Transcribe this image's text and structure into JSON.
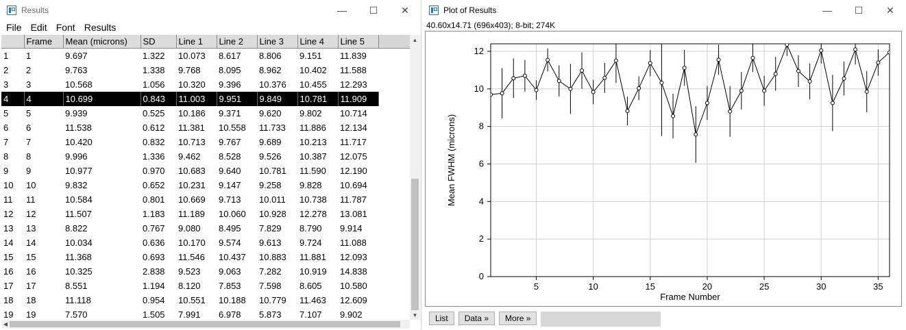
{
  "results_window": {
    "title": "Results",
    "menu": [
      "File",
      "Edit",
      "Font",
      "Results"
    ],
    "columns": [
      "",
      "Frame",
      "Mean (microns)",
      "SD",
      "Line 1",
      "Line 2",
      "Line 3",
      "Line 4",
      "Line 5"
    ],
    "selected_row": 3,
    "rows": [
      [
        "1",
        "1",
        "9.697",
        "1.322",
        "10.073",
        "8.617",
        "8.806",
        "9.151",
        "11.839"
      ],
      [
        "2",
        "2",
        "9.763",
        "1.338",
        "9.768",
        "8.095",
        "8.962",
        "10.402",
        "11.588"
      ],
      [
        "3",
        "3",
        "10.568",
        "1.056",
        "10.320",
        "9.396",
        "10.376",
        "10.455",
        "12.293"
      ],
      [
        "4",
        "4",
        "10.699",
        "0.843",
        "11.003",
        "9.951",
        "9.849",
        "10.781",
        "11.909"
      ],
      [
        "5",
        "5",
        "9.939",
        "0.525",
        "10.186",
        "9.371",
        "9.620",
        "9.802",
        "10.714"
      ],
      [
        "6",
        "6",
        "11.538",
        "0.612",
        "11.381",
        "10.558",
        "11.733",
        "11.886",
        "12.134"
      ],
      [
        "7",
        "7",
        "10.420",
        "0.832",
        "10.713",
        "9.767",
        "9.689",
        "10.213",
        "11.717"
      ],
      [
        "8",
        "8",
        "9.996",
        "1.336",
        "9.462",
        "8.528",
        "9.526",
        "10.387",
        "12.075"
      ],
      [
        "9",
        "9",
        "10.977",
        "0.970",
        "10.683",
        "9.640",
        "10.781",
        "11.590",
        "12.190"
      ],
      [
        "10",
        "10",
        "9.832",
        "0.652",
        "10.231",
        "9.147",
        "9.258",
        "9.828",
        "10.694"
      ],
      [
        "11",
        "11",
        "10.584",
        "0.801",
        "10.669",
        "9.713",
        "10.011",
        "10.738",
        "11.787"
      ],
      [
        "12",
        "12",
        "11.507",
        "1.183",
        "11.189",
        "10.060",
        "10.928",
        "12.278",
        "13.081"
      ],
      [
        "13",
        "13",
        "8.822",
        "0.767",
        "9.080",
        "8.495",
        "7.829",
        "8.790",
        "9.914"
      ],
      [
        "14",
        "14",
        "10.034",
        "0.636",
        "10.170",
        "9.574",
        "9.613",
        "9.724",
        "11.088"
      ],
      [
        "15",
        "15",
        "11.368",
        "0.693",
        "11.546",
        "10.437",
        "10.883",
        "11.881",
        "12.093"
      ],
      [
        "16",
        "16",
        "10.325",
        "2.838",
        "9.523",
        "9.063",
        "7.282",
        "10.919",
        "14.838"
      ],
      [
        "17",
        "17",
        "8.551",
        "1.194",
        "8.120",
        "7.853",
        "7.598",
        "8.605",
        "10.580"
      ],
      [
        "18",
        "18",
        "11.118",
        "0.954",
        "10.551",
        "10.188",
        "10.779",
        "11.463",
        "12.609"
      ],
      [
        "19",
        "19",
        "7.570",
        "1.505",
        "7.991",
        "6.978",
        "5.873",
        "7.107",
        "9.902"
      ]
    ]
  },
  "plot_window": {
    "title": "Plot of Results",
    "info": "40.60x14.71  (696x403); 8-bit; 274K",
    "buttons": [
      "List",
      "Data »",
      "More »"
    ]
  },
  "chart_data": {
    "type": "line",
    "title": "",
    "xlabel": "Frame Number",
    "ylabel": "Mean FWHM (microns)",
    "xlim": [
      1,
      36
    ],
    "ylim": [
      0,
      12.4
    ],
    "xticks": [
      5,
      10,
      15,
      20,
      25,
      30,
      35
    ],
    "yticks": [
      0,
      2,
      4,
      6,
      8,
      10,
      12
    ],
    "grid": true,
    "series": [
      {
        "name": "Mean (microns)",
        "x": [
          1,
          2,
          3,
          4,
          5,
          6,
          7,
          8,
          9,
          10,
          11,
          12,
          13,
          14,
          15,
          16,
          17,
          18,
          19,
          20,
          21,
          22,
          23,
          24,
          25,
          26,
          27,
          28,
          29,
          30,
          31,
          32,
          33,
          34,
          35,
          36
        ],
        "values": [
          9.697,
          9.763,
          10.568,
          10.699,
          9.939,
          11.538,
          10.42,
          9.996,
          10.977,
          9.832,
          10.584,
          11.507,
          8.822,
          10.034,
          11.368,
          10.325,
          8.551,
          11.118,
          7.57,
          9.25,
          11.55,
          8.8,
          9.9,
          11.65,
          9.9,
          10.8,
          12.35,
          10.95,
          10.4,
          12.05,
          9.25,
          10.55,
          12.1,
          9.85,
          11.4,
          11.95
        ],
        "error": [
          1.322,
          1.338,
          1.056,
          0.843,
          0.525,
          0.612,
          0.832,
          1.336,
          0.97,
          0.652,
          0.801,
          1.183,
          0.767,
          0.636,
          0.693,
          2.838,
          1.194,
          0.954,
          1.505,
          0.9,
          0.8,
          1.35,
          1.0,
          0.75,
          0.8,
          0.9,
          0.6,
          0.85,
          0.95,
          0.7,
          1.5,
          0.9,
          0.8,
          1.1,
          0.7,
          0.6
        ]
      }
    ]
  }
}
